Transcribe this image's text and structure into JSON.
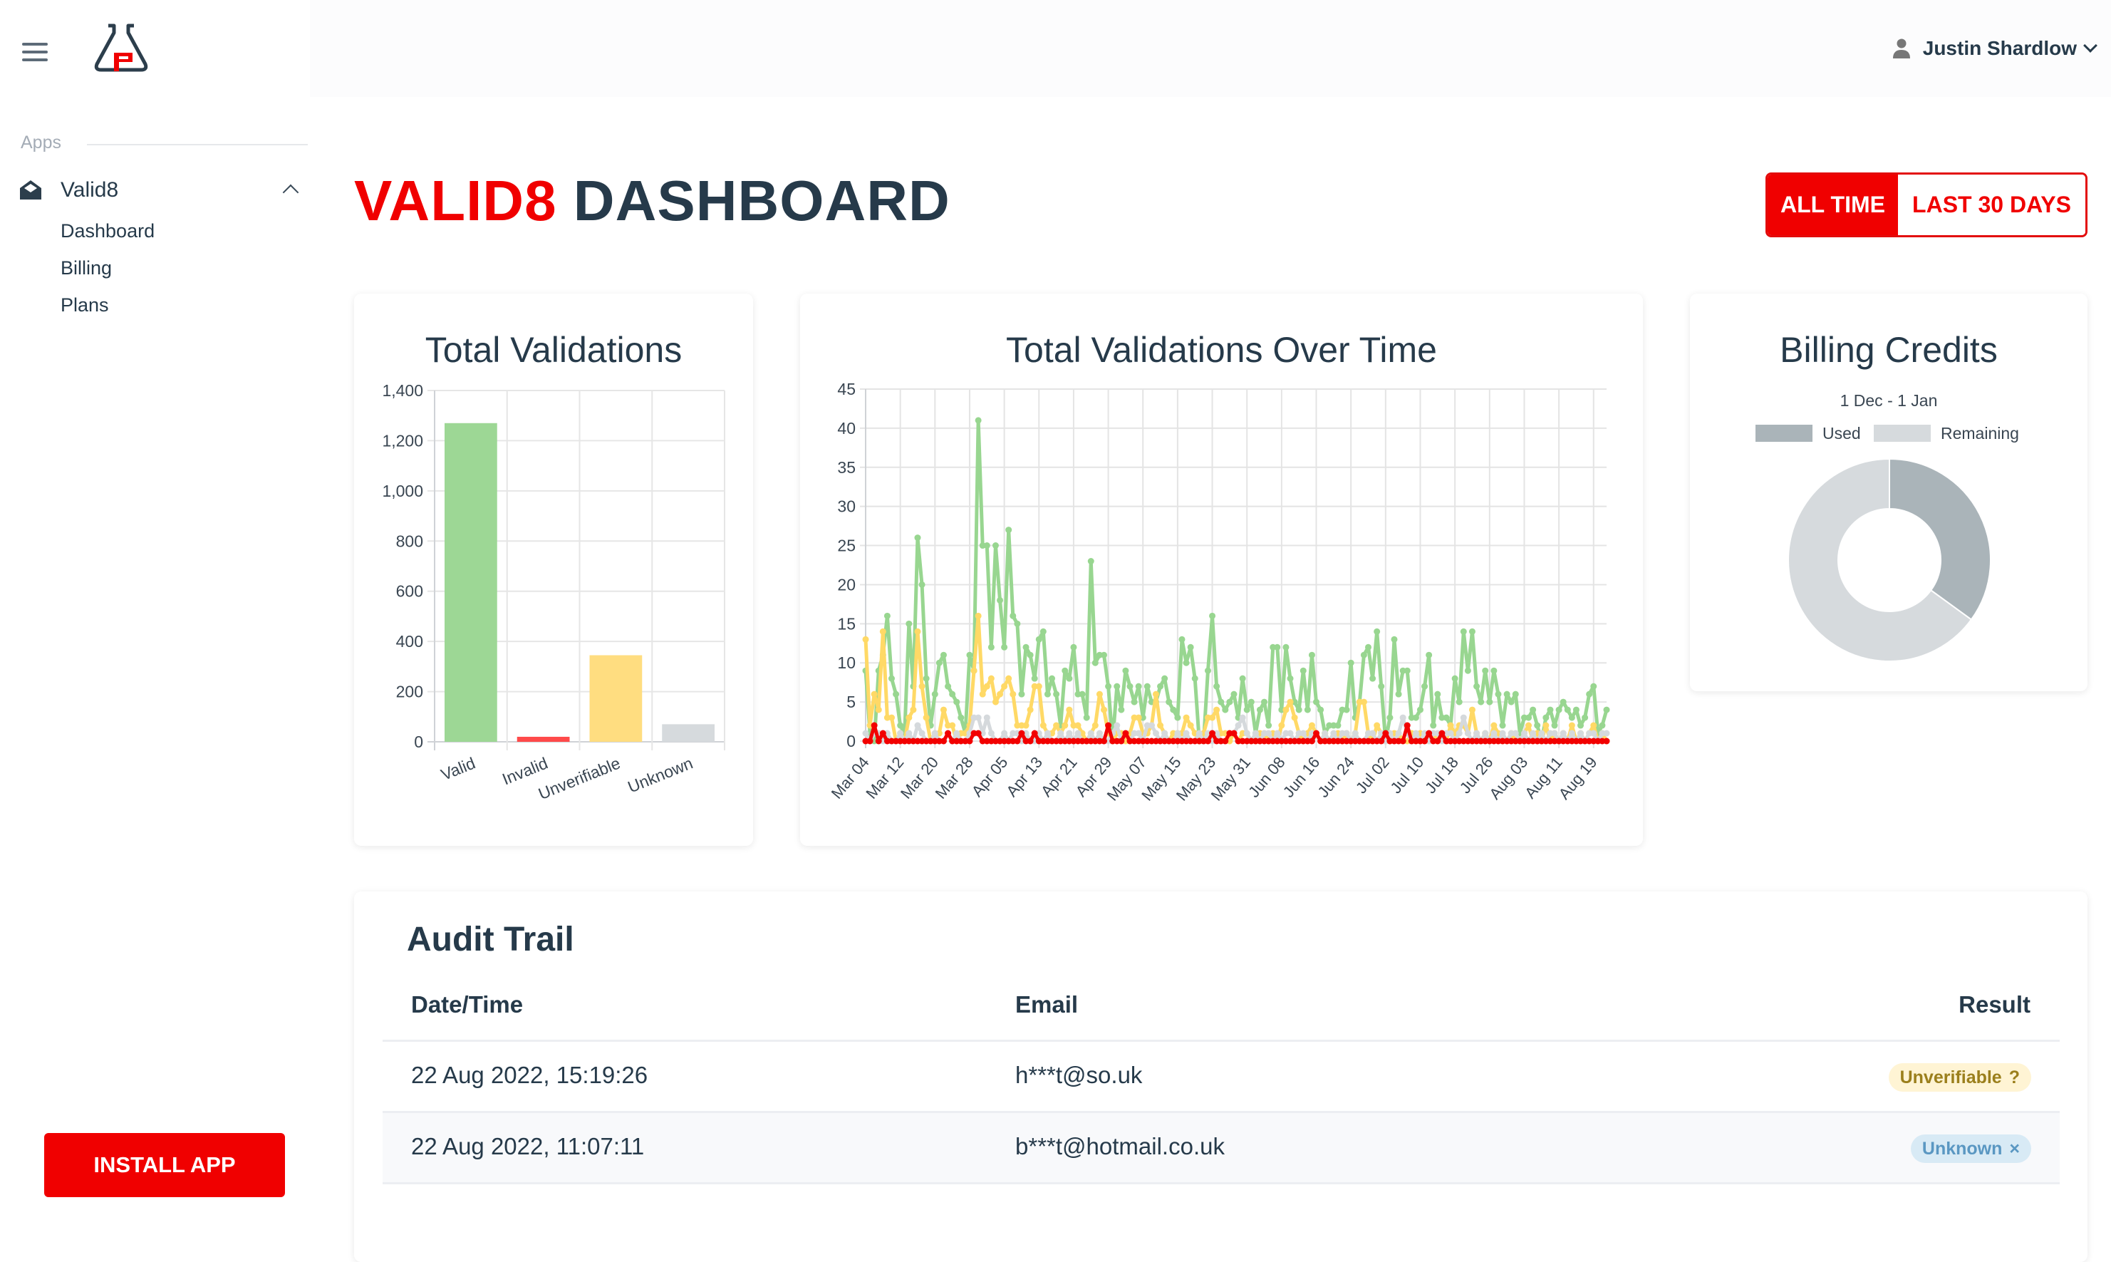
{
  "sidebar": {
    "section_label": "Apps",
    "parent": {
      "label": "Valid8",
      "icon": "envelope-open-icon",
      "expanded": true
    },
    "items": [
      {
        "label": "Dashboard"
      },
      {
        "label": "Billing"
      },
      {
        "label": "Plans"
      }
    ],
    "install_label": "INSTALL APP"
  },
  "header": {
    "user_name": "Justin Shardlow"
  },
  "page": {
    "title_brand": "VALID8",
    "title_rest": "DASHBOARD",
    "range_options": [
      {
        "label": "ALL TIME",
        "active": true
      },
      {
        "label": "LAST 30 DAYS",
        "active": false
      }
    ]
  },
  "colors": {
    "brand_red": "#f00000",
    "valid": "#9dd795",
    "invalid": "#ff4a4a",
    "unverifiable": "#ffdd80",
    "unknown": "#d6dadd",
    "used": "#aab4b9",
    "remaining": "#d6dadd"
  },
  "chart_data": [
    {
      "type": "bar",
      "title": "Total Validations",
      "categories": [
        "Valid",
        "Invalid",
        "Unverifiable",
        "Unknown"
      ],
      "values": [
        1270,
        20,
        345,
        70
      ],
      "colors": [
        "#9dd795",
        "#ff4a4a",
        "#ffdd80",
        "#d6dadd"
      ],
      "ylim": [
        0,
        1400
      ],
      "yticks": [
        "0",
        "200",
        "400",
        "600",
        "800",
        "1,000",
        "1,200",
        "1,400"
      ],
      "grid": true
    },
    {
      "type": "line",
      "title": "Total Validations Over Time",
      "xticks": [
        "Mar 04",
        "Mar 12",
        "Mar 20",
        "Mar 28",
        "Apr 05",
        "Apr 13",
        "Apr 21",
        "Apr 29",
        "May 07",
        "May 15",
        "May 23",
        "May 31",
        "Jun 08",
        "Jun 16",
        "Jun 24",
        "Jul 02",
        "Jul 10",
        "Jul 18",
        "Jul 26",
        "Aug 03",
        "Aug 11",
        "Aug 19"
      ],
      "ylim": [
        0,
        45
      ],
      "yticks": [
        "0",
        "5",
        "10",
        "15",
        "20",
        "25",
        "30",
        "35",
        "40",
        "45"
      ],
      "grid": true,
      "series": [
        {
          "color": "#98d690",
          "values": [
            9,
            1,
            0,
            9,
            11,
            16,
            8,
            6,
            2,
            1,
            15,
            7,
            26,
            20,
            8,
            2,
            6,
            10,
            11,
            7,
            6,
            5,
            3,
            1,
            11,
            9,
            41,
            25,
            25,
            12,
            25,
            18,
            12,
            27,
            16,
            15,
            6,
            12,
            11,
            8,
            13,
            14,
            6,
            8,
            6,
            2,
            9,
            8,
            12,
            6,
            6,
            3,
            23,
            10,
            11,
            11,
            7,
            0,
            7,
            4,
            9,
            7,
            5,
            7,
            3,
            7,
            5,
            5,
            7,
            8,
            5,
            4,
            3,
            13,
            10,
            12,
            8,
            0,
            0,
            9,
            16,
            7,
            5,
            4,
            5,
            6,
            3,
            8,
            4,
            5,
            1,
            4,
            5,
            2,
            12,
            12,
            4,
            12,
            8,
            5,
            4,
            9,
            4,
            11,
            5,
            4,
            1,
            2,
            2,
            2,
            4,
            4,
            10,
            3,
            5,
            11,
            12,
            8,
            14,
            7,
            0,
            3,
            13,
            6,
            9,
            9,
            3,
            3,
            4,
            7,
            11,
            2,
            6,
            3,
            3,
            2,
            8,
            5,
            14,
            9,
            14,
            7,
            5,
            9,
            5,
            9,
            6,
            2,
            6,
            5,
            6,
            1,
            3,
            3,
            4,
            2,
            0,
            3,
            4,
            2,
            4,
            5,
            4,
            3,
            4,
            2,
            3,
            6,
            7,
            1,
            2,
            4
          ]
        },
        {
          "color": "#ffd966",
          "values": [
            13,
            2,
            6,
            4,
            14,
            3,
            3,
            0,
            1,
            0,
            3,
            4,
            14,
            7,
            3,
            0,
            1,
            1,
            4,
            2,
            2,
            0,
            1,
            1,
            2,
            9,
            16,
            6,
            7,
            8,
            5,
            6,
            7,
            8,
            6,
            2,
            2,
            2,
            4,
            7,
            7,
            2,
            1,
            1,
            2,
            1,
            2,
            4,
            2,
            2,
            1,
            0,
            1,
            2,
            6,
            4,
            1,
            0,
            1,
            1,
            0,
            1,
            3,
            3,
            1,
            1,
            2,
            6,
            2,
            1,
            0,
            1,
            1,
            1,
            3,
            2,
            1,
            0,
            1,
            3,
            3,
            4,
            1,
            1,
            0,
            1,
            0,
            1,
            1,
            0,
            0,
            1,
            1,
            0,
            1,
            0,
            2,
            4,
            5,
            3,
            1,
            0,
            1,
            2,
            1,
            0,
            1,
            0,
            0,
            1,
            0,
            1,
            0,
            1,
            5,
            5,
            1,
            0,
            2,
            1,
            0,
            0,
            1,
            1,
            0,
            0,
            1,
            0,
            1,
            0,
            0,
            1,
            0,
            1,
            0,
            2,
            1,
            2,
            2,
            1,
            4,
            1,
            0,
            1,
            0,
            2,
            1,
            0,
            0,
            1,
            0,
            0,
            1,
            2,
            0,
            1,
            0,
            2,
            0,
            1,
            0,
            1,
            0,
            2,
            0,
            1,
            0,
            1,
            2,
            0,
            1,
            0
          ]
        },
        {
          "color": "#d5d9dc",
          "values": [
            1,
            0,
            1,
            1,
            0,
            1,
            0,
            0,
            1,
            0,
            1,
            0,
            2,
            1,
            0,
            0,
            1,
            0,
            0,
            1,
            0,
            1,
            0,
            0,
            1,
            3,
            3,
            1,
            3,
            1,
            0,
            0,
            1,
            0,
            1,
            1,
            0,
            1,
            0,
            0,
            1,
            0,
            1,
            0,
            0,
            1,
            0,
            1,
            0,
            1,
            0,
            0,
            1,
            0,
            1,
            0,
            0,
            1,
            2,
            0,
            1,
            0,
            1,
            1,
            0,
            2,
            2,
            1,
            0,
            1,
            0,
            0,
            1,
            0,
            1,
            0,
            0,
            1,
            0,
            1,
            0,
            1,
            0,
            0,
            1,
            1,
            2,
            3,
            1,
            0,
            1,
            0,
            1,
            1,
            0,
            1,
            0,
            1,
            1,
            0,
            1,
            1,
            0,
            1,
            1,
            0,
            1,
            0,
            1,
            0,
            1,
            1,
            0,
            1,
            0,
            0,
            1,
            1,
            0,
            1,
            0,
            1,
            0,
            1,
            3,
            1,
            0,
            1,
            0,
            1,
            0,
            1,
            1,
            0,
            1,
            1,
            0,
            1,
            3,
            1,
            0,
            1,
            0,
            1,
            0,
            1,
            0,
            1,
            0,
            1,
            1,
            0,
            1,
            0,
            1,
            0,
            1,
            0,
            1,
            1,
            0,
            1,
            0,
            1,
            0,
            1,
            0,
            1,
            1,
            0,
            1,
            1
          ]
        },
        {
          "color": "#f20000",
          "values": [
            0,
            0,
            2,
            0,
            1,
            0,
            0,
            0,
            0,
            0,
            0,
            0,
            0,
            0,
            0,
            0,
            0,
            0,
            0,
            1,
            0,
            0,
            0,
            0,
            0,
            1,
            1,
            0,
            0,
            0,
            0,
            0,
            0,
            0,
            0,
            0,
            1,
            0,
            0,
            1,
            0,
            0,
            0,
            0,
            0,
            0,
            0,
            0,
            0,
            0,
            0,
            0,
            0,
            0,
            0,
            0,
            2,
            0,
            0,
            0,
            1,
            0,
            0,
            0,
            0,
            0,
            0,
            0,
            0,
            0,
            0,
            0,
            0,
            0,
            0,
            0,
            0,
            0,
            0,
            0,
            1,
            0,
            0,
            0,
            1,
            1,
            0,
            0,
            0,
            0,
            0,
            0,
            0,
            0,
            0,
            0,
            0,
            0,
            0,
            0,
            0,
            0,
            0,
            0,
            1,
            0,
            0,
            0,
            0,
            0,
            0,
            0,
            0,
            0,
            0,
            0,
            0,
            0,
            0,
            0,
            1,
            0,
            0,
            0,
            0,
            2,
            0,
            0,
            0,
            0,
            1,
            0,
            0,
            1,
            0,
            0,
            0,
            0,
            0,
            0,
            0,
            0,
            0,
            0,
            0,
            0,
            0,
            0,
            0,
            0,
            0,
            0,
            0,
            0,
            0,
            0,
            0,
            0,
            0,
            0,
            0,
            0,
            0,
            0,
            0,
            0,
            0,
            0,
            0,
            0,
            0,
            0
          ]
        }
      ]
    },
    {
      "type": "pie",
      "title": "Billing Credits",
      "subtitle": "1 Dec - 1 Jan",
      "donut": true,
      "legend_position": "top",
      "labels": [
        "Used",
        "Remaining"
      ],
      "values": [
        35,
        65
      ],
      "colors": [
        "#aab4b9",
        "#d6dadd"
      ]
    }
  ],
  "audit": {
    "title": "Audit Trail",
    "columns": [
      "Date/Time",
      "Email",
      "Result"
    ],
    "rows": [
      {
        "datetime": "22 Aug 2022, 15:19:26",
        "email": "h***t@so.uk",
        "result": "Unverifiable",
        "result_icon": "?",
        "badge_bg": "#fff4d4",
        "badge_fg": "#9b7f1c"
      },
      {
        "datetime": "22 Aug 2022, 11:07:11",
        "email": "b***t@hotmail.co.uk",
        "result": "Unknown",
        "result_icon": "×",
        "badge_bg": "#d8eaf5",
        "badge_fg": "#5a97c2"
      }
    ]
  }
}
